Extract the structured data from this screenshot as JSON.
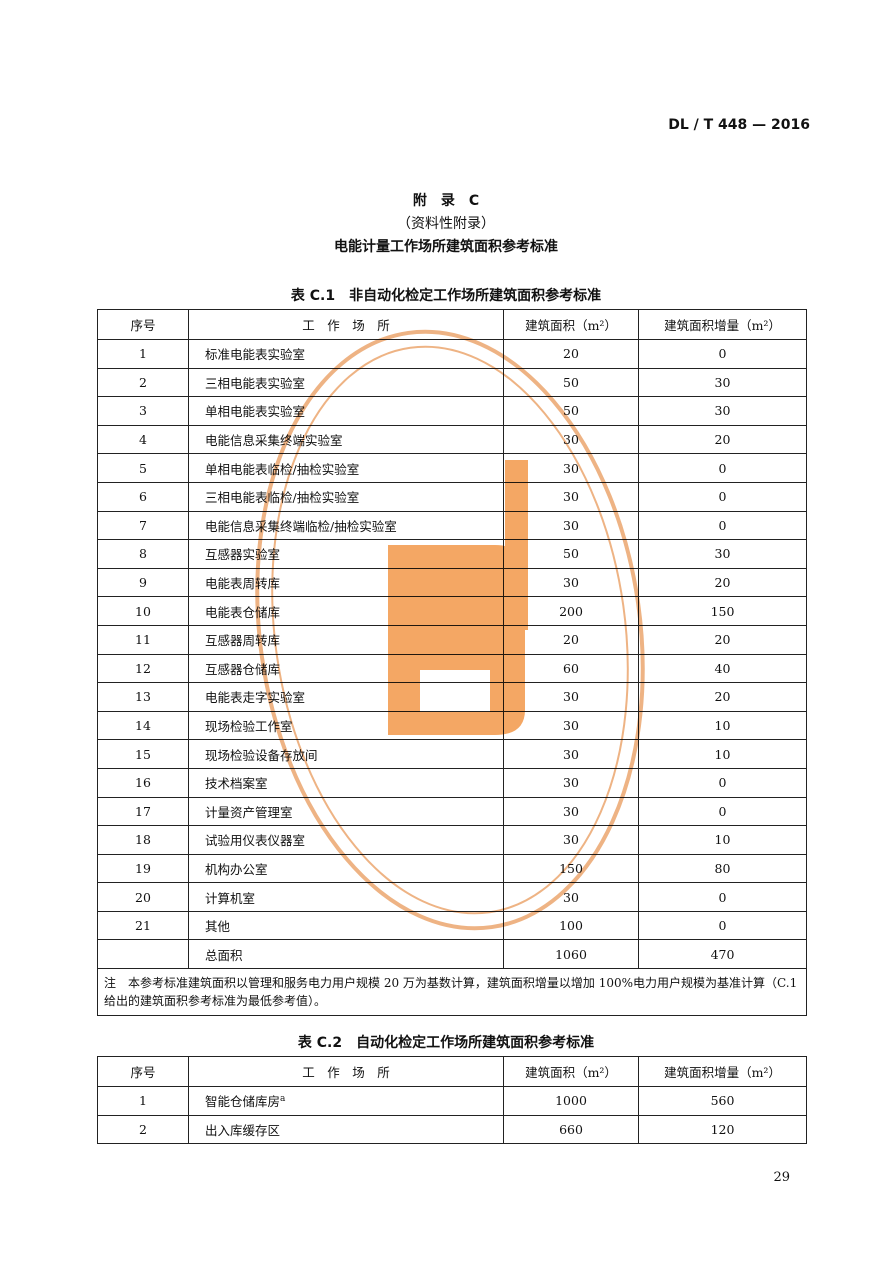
{
  "header": {
    "code": "DL / T 448 — 2016"
  },
  "appendix": {
    "label": "附　录　C",
    "note": "（资料性附录）",
    "title": "电能计量工作场所建筑面积参考标准"
  },
  "table1": {
    "caption": "表 C.1　非自动化检定工作场所建筑面积参考标准",
    "columns": [
      "序号",
      "工　作　场　所",
      "建筑面积（m²）",
      "建筑面积增量（m²）"
    ],
    "rows": [
      [
        1,
        "标准电能表实验室",
        20,
        0
      ],
      [
        2,
        "三相电能表实验室",
        50,
        30
      ],
      [
        3,
        "单相电能表实验室",
        50,
        30
      ],
      [
        4,
        "电能信息采集终端实验室",
        30,
        20
      ],
      [
        5,
        "单相电能表临检/抽检实验室",
        30,
        0
      ],
      [
        6,
        "三相电能表临检/抽检实验室",
        30,
        0
      ],
      [
        7,
        "电能信息采集终端临检/抽检实验室",
        30,
        0
      ],
      [
        8,
        "互感器实验室",
        50,
        30
      ],
      [
        9,
        "电能表周转库",
        30,
        20
      ],
      [
        10,
        "电能表仓储库",
        200,
        150
      ],
      [
        11,
        "互感器周转库",
        20,
        20
      ],
      [
        12,
        "互感器仓储库",
        60,
        40
      ],
      [
        13,
        "电能表走字实验室",
        30,
        20
      ],
      [
        14,
        "现场检验工作室",
        30,
        10
      ],
      [
        15,
        "现场检验设备存放间",
        30,
        10
      ],
      [
        16,
        "技术档案室",
        30,
        0
      ],
      [
        17,
        "计量资产管理室",
        30,
        0
      ],
      [
        18,
        "试验用仪表仪器室",
        30,
        10
      ],
      [
        19,
        "机构办公室",
        150,
        80
      ],
      [
        20,
        "计算机室",
        30,
        0
      ],
      [
        21,
        "其他",
        100,
        0
      ]
    ],
    "total": {
      "label": "总面积",
      "area": 1060,
      "increment": 470
    },
    "note": "注　本参考标准建筑面积以管理和服务电力用户规模 20 万为基数计算，建筑面积增量以增加 100%电力用户规模为基准计算（C.1 给出的建筑面积参考标准为最低参考值）。"
  },
  "table2": {
    "caption": "表 C.2　自动化检定工作场所建筑面积参考标准",
    "columns": [
      "序号",
      "工　作　场　所",
      "建筑面积（m²）",
      "建筑面积增量（m²）"
    ],
    "rows": [
      {
        "no": 1,
        "place": "智能仓储库房",
        "mark": "a",
        "area": 1000,
        "increment": 560
      },
      {
        "no": 2,
        "place": "出入库缓存区",
        "area": 660,
        "increment": 120
      }
    ]
  },
  "footer": {
    "page": 29
  }
}
